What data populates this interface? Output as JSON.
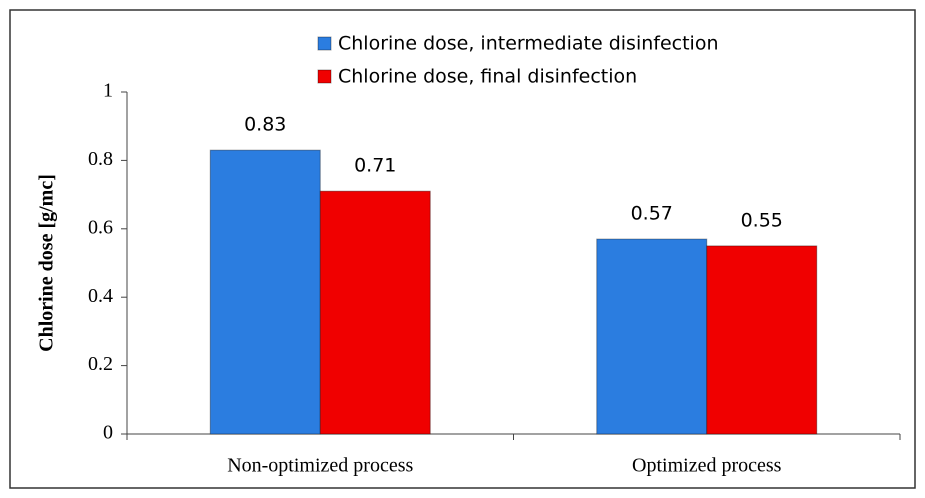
{
  "chart_data": {
    "type": "bar",
    "y_label": "Chlorine dose [g/mc]",
    "categories": [
      "Non-optimized process",
      "Optimized process"
    ],
    "series": [
      {
        "name": "Chlorine dose, intermediate disinfection",
        "color": "#2b7de0",
        "values": [
          0.83,
          0.57
        ]
      },
      {
        "name": "Chlorine dose, final disinfection",
        "color": "#f00000",
        "values": [
          0.71,
          0.55
        ]
      }
    ],
    "ylim": [
      0,
      1
    ],
    "yticks": [
      0,
      0.2,
      0.4,
      0.6,
      0.8,
      1
    ],
    "grid": false,
    "legend": "top"
  }
}
